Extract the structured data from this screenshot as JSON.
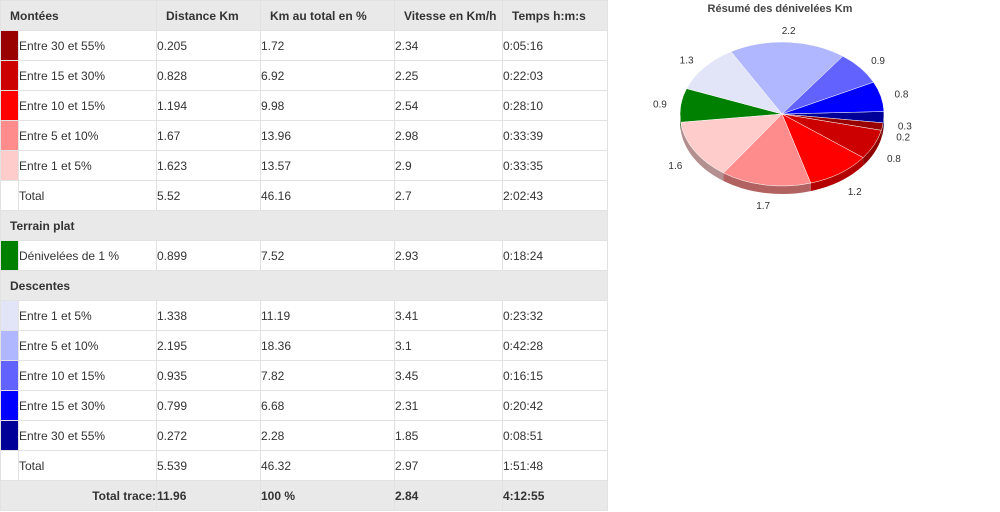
{
  "table": {
    "montees": {
      "title": "Montées",
      "headers": [
        "Distance Km",
        "Km au total en %",
        "Vitesse en Km/h",
        "Temps h:m:s"
      ],
      "rows": [
        {
          "label": "Entre 30 et 55%",
          "color": "#990000",
          "dist": "0.205",
          "pct": "1.72",
          "speed": "2.34",
          "time": "0:05:16"
        },
        {
          "label": "Entre 15 et 30%",
          "color": "#cc0000",
          "dist": "0.828",
          "pct": "6.92",
          "speed": "2.25",
          "time": "0:22:03"
        },
        {
          "label": "Entre 10 et 15%",
          "color": "#ff0000",
          "dist": "1.194",
          "pct": "9.98",
          "speed": "2.54",
          "time": "0:28:10"
        },
        {
          "label": "Entre 5 et 10%",
          "color": "#ff8c8c",
          "dist": "1.67",
          "pct": "13.96",
          "speed": "2.98",
          "time": "0:33:39"
        },
        {
          "label": "Entre 1 et 5%",
          "color": "#ffcccc",
          "dist": "1.623",
          "pct": "13.57",
          "speed": "2.9",
          "time": "0:33:35"
        },
        {
          "label": "Total",
          "color": "#ffffff",
          "dist": "5.52",
          "pct": "46.16",
          "speed": "2.7",
          "time": "2:02:43"
        }
      ]
    },
    "plat": {
      "title": "Terrain plat",
      "rows": [
        {
          "label": "Dénivelées de 1 %",
          "color": "#008000",
          "dist": "0.899",
          "pct": "7.52",
          "speed": "2.93",
          "time": "0:18:24"
        }
      ]
    },
    "descentes": {
      "title": "Descentes",
      "rows": [
        {
          "label": "Entre 1 et 5%",
          "color": "#e2e5f7",
          "dist": "1.338",
          "pct": "11.19",
          "speed": "3.41",
          "time": "0:23:32"
        },
        {
          "label": "Entre 5 et 10%",
          "color": "#b1b7ff",
          "dist": "2.195",
          "pct": "18.36",
          "speed": "3.1",
          "time": "0:42:28"
        },
        {
          "label": "Entre 10 et 15%",
          "color": "#6262ff",
          "dist": "0.935",
          "pct": "7.82",
          "speed": "3.45",
          "time": "0:16:15"
        },
        {
          "label": "Entre 15 et 30%",
          "color": "#0000ff",
          "dist": "0.799",
          "pct": "6.68",
          "speed": "2.31",
          "time": "0:20:42"
        },
        {
          "label": "Entre 30 et 55%",
          "color": "#000099",
          "dist": "0.272",
          "pct": "2.28",
          "speed": "1.85",
          "time": "0:08:51"
        },
        {
          "label": "Total",
          "color": "#ffffff",
          "dist": "5.539",
          "pct": "46.32",
          "speed": "2.97",
          "time": "1:51:48"
        }
      ]
    },
    "total": {
      "label": "Total trace:",
      "dist": "11.96",
      "pct": "100 %",
      "speed": "2.84",
      "time": "4:12:55"
    }
  },
  "chart_data": {
    "type": "pie",
    "title": "Résumé des dénivelées Km",
    "slices": [
      {
        "value": 0.3,
        "color": "#000099"
      },
      {
        "value": 0.2,
        "color": "#990000"
      },
      {
        "value": 0.8,
        "color": "#cc0000"
      },
      {
        "value": 1.2,
        "color": "#ff0000"
      },
      {
        "value": 1.7,
        "color": "#ff8c8c"
      },
      {
        "value": 1.6,
        "color": "#ffcccc"
      },
      {
        "value": 0.9,
        "color": "#008000"
      },
      {
        "value": 1.3,
        "color": "#e2e5f7"
      },
      {
        "value": 2.2,
        "color": "#b1b7ff"
      },
      {
        "value": 0.9,
        "color": "#6262ff"
      },
      {
        "value": 0.8,
        "color": "#0000ff"
      }
    ]
  }
}
